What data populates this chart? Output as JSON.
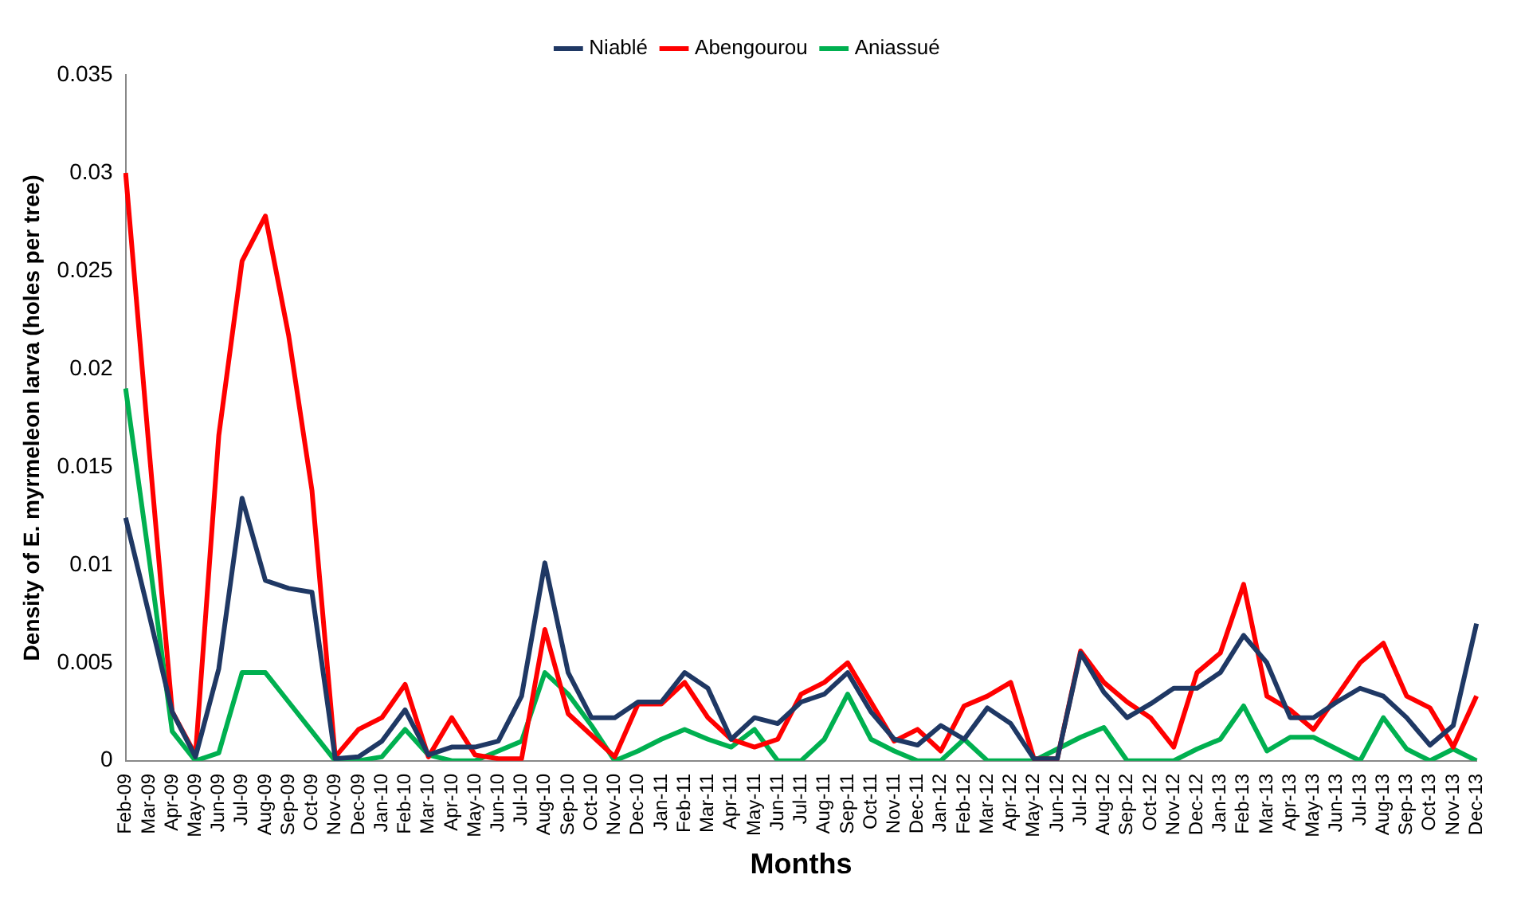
{
  "chart_data": {
    "type": "line",
    "xlabel": "Months",
    "ylabel": "Density of E. myrmeleon larva (holes per tree)",
    "categories": [
      "Feb-09",
      "Mar-09",
      "Apr-09",
      "May-09",
      "Jun-09",
      "Jul-09",
      "Aug-09",
      "Sep-09",
      "Oct-09",
      "Nov-09",
      "Dec-09",
      "Jan-10",
      "Feb-10",
      "Mar-10",
      "Apr-10",
      "May-10",
      "Jun-10",
      "Jul-10",
      "Aug-10",
      "Sep-10",
      "Oct-10",
      "Nov-10",
      "Dec-10",
      "Jan-11",
      "Feb-11",
      "Mar-11",
      "Apr-11",
      "May-11",
      "Jun-11",
      "Jul-11",
      "Aug-11",
      "Sep-11",
      "Oct-11",
      "Nov-11",
      "Dec-11",
      "Jan-12",
      "Feb-12",
      "Mar-12",
      "Apr-12",
      "May-12",
      "Jun-12",
      "Jul-12",
      "Aug-12",
      "Sep-12",
      "Oct-12",
      "Nov-12",
      "Dec-12",
      "Jan-13",
      "Feb-13",
      "Mar-13",
      "Apr-13",
      "May-13",
      "Jun-13",
      "Jul-13",
      "Aug-13",
      "Sep-13",
      "Oct-13",
      "Nov-13",
      "Dec-13"
    ],
    "series": [
      {
        "name": "Niablé",
        "color": "#1f3864",
        "values": [
          0.0124,
          0.0075,
          0.0025,
          0.0002,
          0.0047,
          0.0134,
          0.0092,
          0.0088,
          0.0086,
          0.0001,
          0.0002,
          0.001,
          0.0026,
          0.0003,
          0.0007,
          0.0007,
          0.001,
          0.0033,
          0.0101,
          0.0045,
          0.0022,
          0.0022,
          0.003,
          0.003,
          0.0045,
          0.0037,
          0.0011,
          0.0022,
          0.0019,
          0.003,
          0.0034,
          0.0045,
          0.0025,
          0.0011,
          0.0008,
          0.0018,
          0.0011,
          0.0027,
          0.0019,
          0.0001,
          0.0001,
          0.0055,
          0.0035,
          0.0022,
          0.0029,
          0.0037,
          0.0037,
          0.0045,
          0.0064,
          0.005,
          0.0022,
          0.0022,
          0.003,
          0.0037,
          0.0033,
          0.0022,
          0.0008,
          0.0018,
          0.007
        ]
      },
      {
        "name": "Abengourou",
        "color": "#ff0000",
        "values": [
          0.03,
          0.016,
          0.0025,
          0.0003,
          0.0166,
          0.0255,
          0.0278,
          0.0217,
          0.0138,
          0.0002,
          0.0016,
          0.0022,
          0.0039,
          0.0002,
          0.0022,
          0.0003,
          0.0001,
          0.0001,
          0.0067,
          0.0024,
          0.0013,
          0.0002,
          0.0029,
          0.0029,
          0.004,
          0.0022,
          0.0011,
          0.0007,
          0.0011,
          0.0034,
          0.004,
          0.005,
          0.003,
          0.001,
          0.0016,
          0.0005,
          0.0028,
          0.0033,
          0.004,
          0.0001,
          0.0001,
          0.0056,
          0.004,
          0.003,
          0.0022,
          0.0007,
          0.0045,
          0.0055,
          0.009,
          0.0033,
          0.0026,
          0.0016,
          0.0033,
          0.005,
          0.006,
          0.0033,
          0.0027,
          0.0007,
          0.0033
        ]
      },
      {
        "name": "Aniassué",
        "color": "#00b050",
        "values": [
          0.019,
          0.0104,
          0.0015,
          0,
          0.0004,
          0.0045,
          0.0045,
          0.003,
          0.0015,
          0,
          0,
          0.0002,
          0.0016,
          0.0003,
          0,
          0,
          0.0005,
          0.001,
          0.0045,
          0.0034,
          0.0018,
          0,
          0.0005,
          0.0011,
          0.0016,
          0.0011,
          0.0007,
          0.0016,
          0,
          0,
          0.0011,
          0.0034,
          0.0011,
          0.0005,
          0,
          0,
          0.0011,
          0,
          0,
          0,
          0.0006,
          0.0012,
          0.0017,
          0,
          0,
          0,
          0.0006,
          0.0011,
          0.0028,
          0.0005,
          0.0012,
          0.0012,
          0.0006,
          0,
          0.0022,
          0.0006,
          0,
          0.0006,
          0
        ]
      }
    ],
    "ylim": [
      0,
      0.035
    ],
    "yticks": [
      0,
      0.005,
      0.01,
      0.015,
      0.02,
      0.025,
      0.03,
      0.035
    ],
    "grid": false,
    "legend": "top",
    "marker": "none",
    "line_style": "solid"
  }
}
